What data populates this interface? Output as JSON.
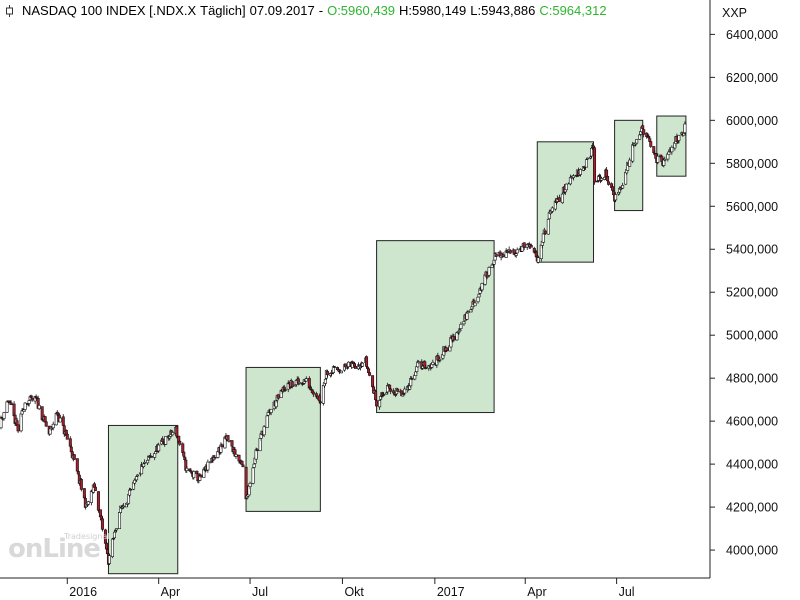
{
  "header": {
    "title": "NASDAQ 100 INDEX [.NDX.X",
    "interval": "Täglich]",
    "date": "07.09.2017",
    "dash": "-",
    "open": "O:5960,439",
    "high": "H:5980,149",
    "low": "L:5943,886",
    "close": "C:5964,312",
    "axis_code": "XXP"
  },
  "logo": {
    "text": "onLine",
    "subtext": "Tradesignal"
  },
  "colors": {
    "up": "#ffffff",
    "down": "#aa1f2e",
    "box_fill": "#cde6cd",
    "box_stroke": "#222222",
    "green": "#2fb52f"
  },
  "chart_data": {
    "type": "candlestick",
    "y_axis": {
      "position": "right",
      "ylim": [
        3870,
        6560
      ],
      "ticks": [
        4000,
        4200,
        4400,
        4600,
        4800,
        5000,
        5200,
        5400,
        5600,
        5800,
        6000,
        6200,
        6400
      ],
      "tick_labels": [
        "4000,000",
        "4200,000",
        "4400,000",
        "4600,000",
        "4800,000",
        "5000,000",
        "5200,000",
        "5400,000",
        "5600,000",
        "5800,000",
        "6000,000",
        "6200,000",
        "6400,000"
      ]
    },
    "x_axis": {
      "start": "2015-10-26",
      "end": "2017-09-30",
      "tick_dates": [
        "2016-01-01",
        "2016-04-01",
        "2016-07-01",
        "2016-10-01",
        "2017-01-01",
        "2017-04-01",
        "2017-07-01"
      ],
      "tick_labels": [
        "2016",
        "Apr",
        "Jul",
        "Okt",
        "2017",
        "Apr",
        "Jul"
      ]
    },
    "series_anchors": [
      [
        "2015-10-26",
        4590
      ],
      [
        "2015-11-03",
        4700
      ],
      [
        "2015-11-13",
        4560
      ],
      [
        "2015-11-20",
        4690
      ],
      [
        "2015-12-01",
        4700
      ],
      [
        "2015-12-14",
        4540
      ],
      [
        "2015-12-22",
        4640
      ],
      [
        "2016-01-04",
        4480
      ],
      [
        "2016-01-20",
        4200
      ],
      [
        "2016-01-28",
        4300
      ],
      [
        "2016-02-05",
        4100
      ],
      [
        "2016-02-11",
        3950
      ],
      [
        "2016-02-22",
        4180
      ],
      [
        "2016-03-01",
        4240
      ],
      [
        "2016-03-15",
        4380
      ],
      [
        "2016-04-01",
        4480
      ],
      [
        "2016-04-18",
        4560
      ],
      [
        "2016-04-29",
        4370
      ],
      [
        "2016-05-12",
        4330
      ],
      [
        "2016-05-24",
        4420
      ],
      [
        "2016-06-08",
        4520
      ],
      [
        "2016-06-24",
        4380
      ],
      [
        "2016-06-27",
        4230
      ],
      [
        "2016-07-07",
        4460
      ],
      [
        "2016-07-20",
        4640
      ],
      [
        "2016-08-05",
        4760
      ],
      [
        "2016-08-25",
        4790
      ],
      [
        "2016-09-09",
        4700
      ],
      [
        "2016-09-15",
        4830
      ],
      [
        "2016-10-04",
        4850
      ],
      [
        "2016-10-24",
        4880
      ],
      [
        "2016-11-04",
        4690
      ],
      [
        "2016-11-15",
        4750
      ],
      [
        "2016-12-01",
        4720
      ],
      [
        "2016-12-15",
        4860
      ],
      [
        "2016-12-30",
        4860
      ],
      [
        "2017-01-20",
        4990
      ],
      [
        "2017-02-10",
        5160
      ],
      [
        "2017-03-01",
        5360
      ],
      [
        "2017-03-20",
        5390
      ],
      [
        "2017-04-03",
        5420
      ],
      [
        "2017-04-13",
        5360
      ],
      [
        "2017-04-26",
        5570
      ],
      [
        "2017-05-15",
        5720
      ],
      [
        "2017-06-01",
        5800
      ],
      [
        "2017-06-08",
        5880
      ],
      [
        "2017-06-09",
        5710
      ],
      [
        "2017-06-20",
        5750
      ],
      [
        "2017-06-29",
        5640
      ],
      [
        "2017-07-07",
        5700
      ],
      [
        "2017-07-18",
        5900
      ],
      [
        "2017-07-27",
        5960
      ],
      [
        "2017-08-10",
        5820
      ],
      [
        "2017-08-18",
        5800
      ],
      [
        "2017-08-25",
        5880
      ],
      [
        "2017-09-07",
        5964
      ]
    ],
    "highlight_boxes": [
      {
        "start": "2016-02-11",
        "end": "2016-04-20",
        "low": 3890,
        "high": 4580
      },
      {
        "start": "2016-06-27",
        "end": "2016-09-09",
        "low": 4180,
        "high": 4850
      },
      {
        "start": "2016-11-04",
        "end": "2017-03-01",
        "low": 4640,
        "high": 5440
      },
      {
        "start": "2017-04-13",
        "end": "2017-06-08",
        "low": 5340,
        "high": 5900
      },
      {
        "start": "2017-06-29",
        "end": "2017-07-27",
        "low": 5580,
        "high": 6000
      },
      {
        "start": "2017-08-10",
        "end": "2017-09-08",
        "low": 5740,
        "high": 6020
      }
    ]
  }
}
